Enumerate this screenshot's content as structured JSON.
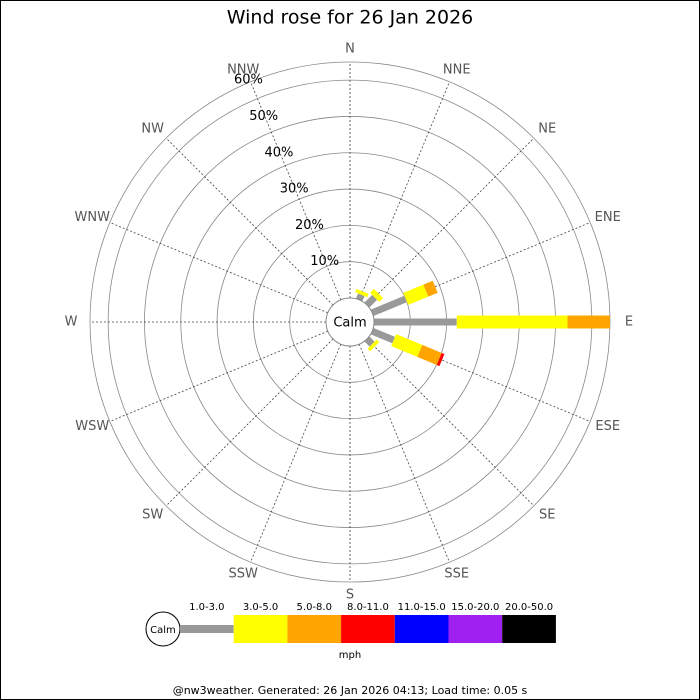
{
  "chart_data": {
    "type": "windrose",
    "title": "Wind rose for 26 Jan 2026",
    "categories": [
      "N",
      "NNE",
      "NE",
      "ENE",
      "E",
      "ESE",
      "SE",
      "SSE",
      "S",
      "SSW",
      "SW",
      "WSW",
      "W",
      "WNW",
      "NW",
      "NNW"
    ],
    "calm_label": "Calm",
    "series": [
      {
        "name": "1.0-3.0",
        "color": "#999999",
        "values": [
          0,
          1.5,
          3,
          10,
          22.8,
          6.4,
          2,
          0,
          0,
          0,
          0,
          0,
          0,
          0,
          0,
          0
        ]
      },
      {
        "name": "3.0-5.0",
        "color": "#ffff00",
        "values": [
          0,
          1,
          1.5,
          6,
          30.5,
          7.8,
          1,
          0,
          0,
          0,
          0,
          0,
          0,
          0,
          0,
          0
        ]
      },
      {
        "name": "5.0-8.0",
        "color": "#ffa500",
        "values": [
          0,
          0,
          0,
          2.8,
          11.7,
          5.8,
          0,
          0,
          0,
          0,
          0,
          0,
          0,
          0,
          0,
          0
        ]
      },
      {
        "name": "8.0-11.0",
        "color": "#ff0000",
        "values": [
          0,
          0,
          0,
          0,
          0,
          0.8,
          0,
          0,
          0,
          0,
          0,
          0,
          0,
          0,
          0,
          0
        ]
      },
      {
        "name": "11.0-15.0",
        "color": "#0000ff",
        "values": [
          0,
          0,
          0,
          0,
          0,
          0,
          0,
          0,
          0,
          0,
          0,
          0,
          0,
          0,
          0,
          0
        ]
      },
      {
        "name": "15.0-20.0",
        "color": "#a020f0",
        "values": [
          0,
          0,
          0,
          0,
          0,
          0,
          0,
          0,
          0,
          0,
          0,
          0,
          0,
          0,
          0,
          0
        ]
      },
      {
        "name": "20.0-50.0",
        "color": "#000000",
        "values": [
          0,
          0,
          0,
          0,
          0,
          0,
          0,
          0,
          0,
          0,
          0,
          0,
          0,
          0,
          0,
          0
        ]
      }
    ],
    "legend_unit": "mph",
    "rlim": [
      0,
      65
    ],
    "rticks": [
      {
        "value": 10,
        "label": "10%"
      },
      {
        "value": 20,
        "label": "20%"
      },
      {
        "value": 30,
        "label": "30%"
      },
      {
        "value": 40,
        "label": "40%"
      },
      {
        "value": 50,
        "label": "50%"
      },
      {
        "value": 60,
        "label": "60%"
      }
    ],
    "footer": "@nw3weather. Generated: 26 Jan 2026 04:13; Load time: 0.05 s"
  }
}
